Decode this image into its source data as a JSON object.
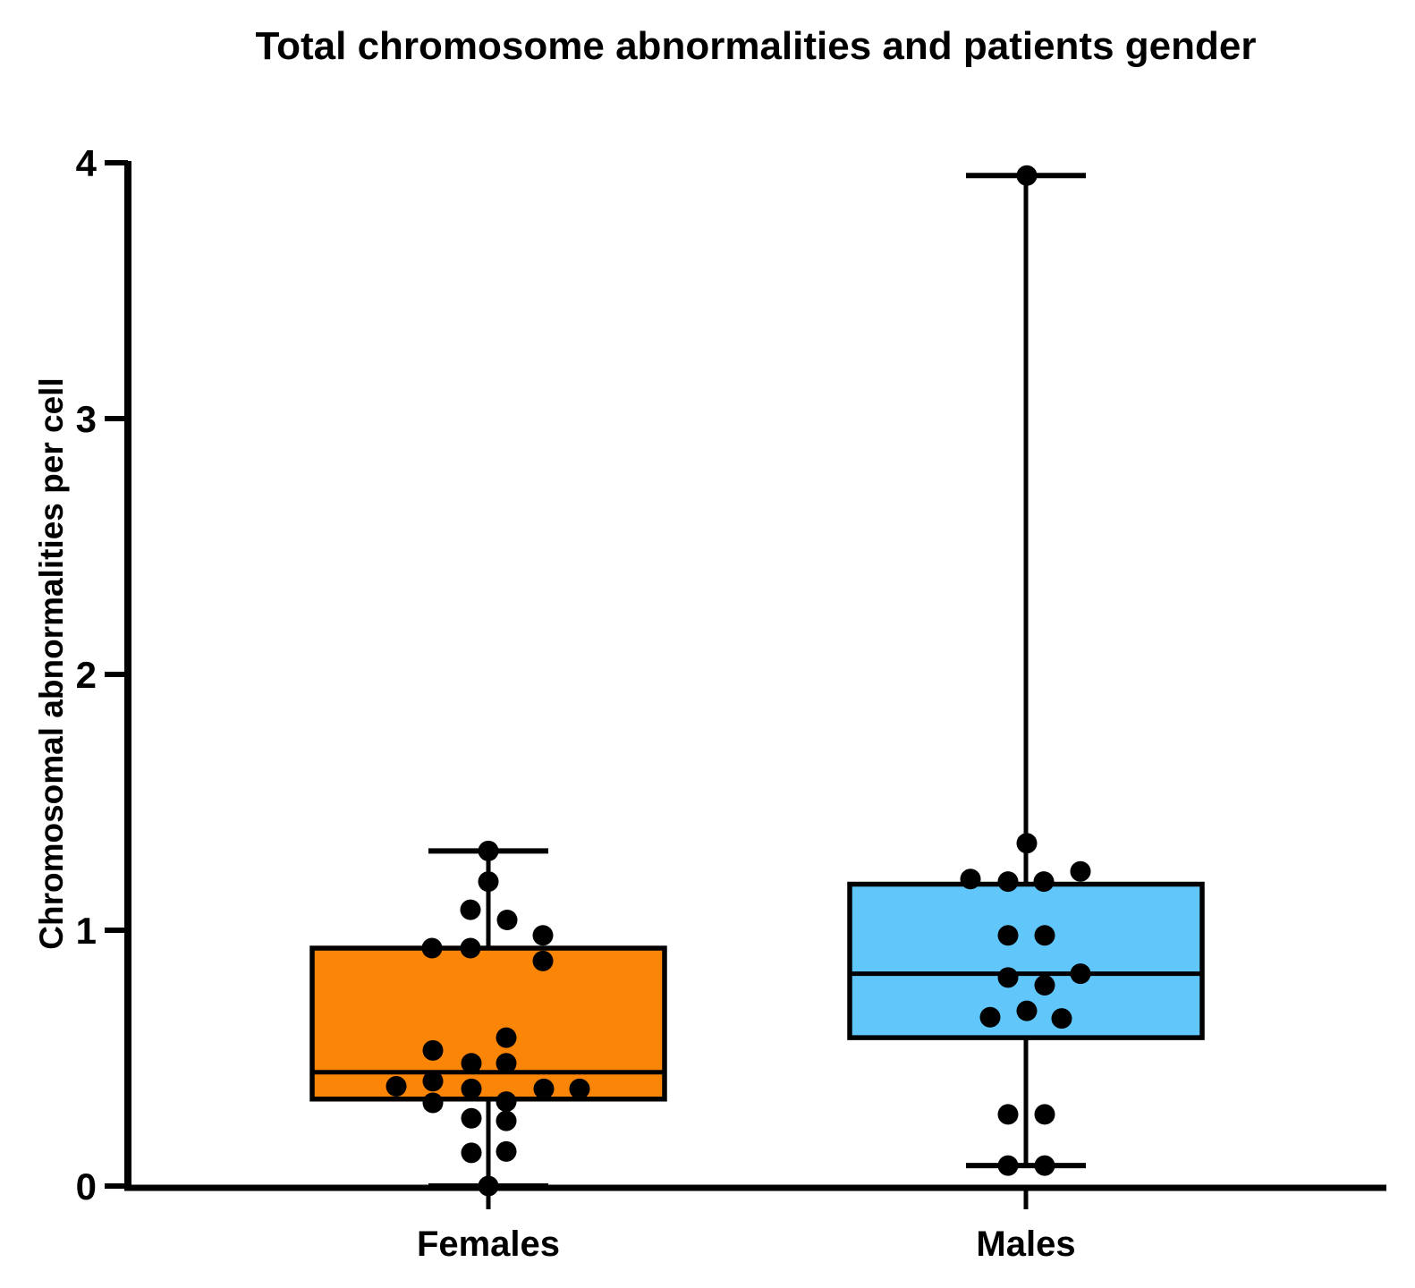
{
  "figure": {
    "background": "#FFFFFF"
  },
  "chart_data": {
    "type": "box",
    "title": "Total chromosome abnormalities and patients gender",
    "ylabel": "Chromosomal abnormalities per cell",
    "xlabel": "",
    "ylim": [
      0,
      4
    ],
    "yticks": [
      0,
      1,
      2,
      3,
      4
    ],
    "grid": false,
    "legend": "none",
    "axis_color": "#000000",
    "point_color": "#000000",
    "categories": [
      "Females",
      "Males"
    ],
    "groups": [
      {
        "label": "Females",
        "fill_color": "#FA8507",
        "box": {
          "whisker_low": 0,
          "q1": 0.34,
          "median": 0.445,
          "q3": 0.93,
          "whisker_high": 1.31
        },
        "points": [
          [
            0,
            1.31
          ],
          [
            0,
            1.19
          ],
          [
            -20,
            1.08
          ],
          [
            21,
            1.04
          ],
          [
            61,
            0.98
          ],
          [
            -63,
            0.93
          ],
          [
            -20,
            0.93
          ],
          [
            61,
            0.88
          ],
          [
            20,
            0.58
          ],
          [
            -62,
            0.53
          ],
          [
            -19,
            0.48
          ],
          [
            20,
            0.48
          ],
          [
            -62,
            0.41
          ],
          [
            -103,
            0.39
          ],
          [
            -19,
            0.38
          ],
          [
            62,
            0.38
          ],
          [
            102,
            0.38
          ],
          [
            -62,
            0.325
          ],
          [
            20,
            0.33
          ],
          [
            -19,
            0.265
          ],
          [
            20,
            0.255
          ],
          [
            -19,
            0.13
          ],
          [
            20,
            0.135
          ],
          [
            0,
            0
          ]
        ]
      },
      {
        "label": "Males",
        "fill_color": "#61C7FA",
        "box": {
          "whisker_low": 0.08,
          "q1": 0.58,
          "median": 0.83,
          "q3": 1.18,
          "whisker_high": 3.95
        },
        "points": [
          [
            1,
            3.95
          ],
          [
            1,
            1.34
          ],
          [
            61,
            1.23
          ],
          [
            -62,
            1.2
          ],
          [
            -20,
            1.19
          ],
          [
            20,
            1.19
          ],
          [
            -20,
            0.98
          ],
          [
            21,
            0.98
          ],
          [
            61,
            0.83
          ],
          [
            -20,
            0.815
          ],
          [
            21,
            0.785
          ],
          [
            -40,
            0.66
          ],
          [
            1,
            0.685
          ],
          [
            40,
            0.655
          ],
          [
            -20,
            0.28
          ],
          [
            21,
            0.28
          ],
          [
            -20,
            0.08
          ],
          [
            21,
            0.08
          ]
        ]
      }
    ]
  }
}
